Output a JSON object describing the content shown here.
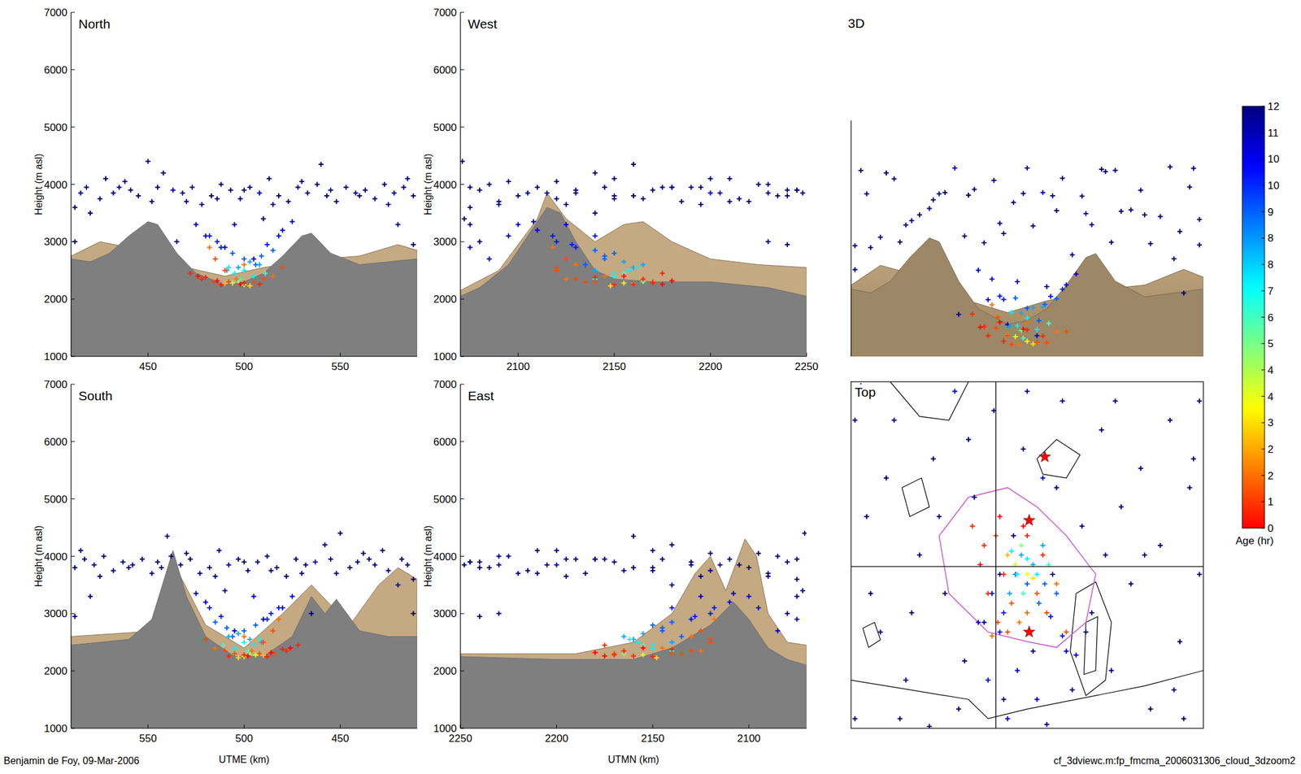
{
  "chart_data": {
    "type": "scatter",
    "marker": "plus",
    "particles": {
      "utme": [
        412,
        418,
        425,
        432,
        438,
        445,
        452,
        458,
        463,
        468,
        473,
        478,
        483,
        488,
        493,
        498,
        503,
        508,
        513,
        518,
        523,
        528,
        533,
        538,
        543,
        548,
        553,
        558,
        563,
        568,
        573,
        578,
        583,
        588,
        415,
        428,
        441,
        455,
        470,
        486,
        500,
        515,
        530,
        545,
        560,
        575,
        585,
        420,
        435,
        465,
        580,
        412,
        588,
        510,
        495,
        520,
        480,
        505,
        490,
        450,
        540,
        475,
        482,
        488,
        494,
        500,
        506,
        512,
        518,
        525,
        497,
        503,
        491,
        509,
        486,
        515,
        495,
        500,
        505,
        492,
        508,
        498,
        511,
        494,
        500,
        497,
        503,
        490,
        472,
        478,
        484,
        488,
        492,
        496,
        500,
        505,
        510,
        515,
        520,
        480,
        486,
        476,
        508,
        490,
        500,
        485,
        482,
        498
      ],
      "utmn": [
        2075,
        2180,
        2120,
        2230,
        2095,
        2160,
        2210,
        2140,
        2245,
        2105,
        2190,
        2125,
        2235,
        2085,
        2170,
        2215,
        2110,
        2200,
        2150,
        2240,
        2090,
        2175,
        2130,
        2225,
        2100,
        2185,
        2145,
        2205,
        2080,
        2165,
        2230,
        2115,
        2195,
        2150,
        2248,
        2200,
        2130,
        2180,
        2220,
        2150,
        2245,
        2195,
        2120,
        2240,
        2160,
        2090,
        2210,
        2140,
        2075,
        2080,
        2075,
        2230,
        2240,
        2072,
        2100,
        2110,
        2095,
        2085,
        2075,
        2071,
        2160,
        2125,
        2140,
        2130,
        2150,
        2145,
        2135,
        2128,
        2118,
        2108,
        2160,
        2155,
        2140,
        2145,
        2120,
        2140,
        2150,
        2158,
        2150,
        2162,
        2165,
        2140,
        2155,
        2155,
        2150,
        2165,
        2148,
        2160,
        2175,
        2165,
        2170,
        2150,
        2135,
        2125,
        2170,
        2140,
        2130,
        2145,
        2120,
        2140,
        2180,
        2155,
        2160,
        2120,
        2130,
        2125,
        2118,
        2175
      ],
      "height": [
        3600,
        3950,
        3750,
        3850,
        4050,
        3800,
        3700,
        4200,
        3900,
        3850,
        3950,
        3650,
        3800,
        4000,
        3900,
        3750,
        3950,
        3850,
        4100,
        3800,
        3700,
        3950,
        3850,
        4000,
        3800,
        3700,
        3950,
        3850,
        3900,
        3750,
        4000,
        3850,
        3950,
        3800,
        3850,
        4100,
        3900,
        3950,
        3700,
        3750,
        3900,
        3650,
        4050,
        3900,
        3800,
        3650,
        4100,
        3500,
        3950,
        3000,
        3300,
        3000,
        2950,
        3400,
        3300,
        3200,
        3100,
        2700,
        2900,
        4400,
        4350,
        3300,
        3100,
        2900,
        2800,
        2700,
        2600,
        2950,
        3100,
        3350,
        2550,
        2650,
        2500,
        2750,
        3000,
        2850,
        2450,
        2500,
        2400,
        2550,
        2600,
        2350,
        2450,
        2280,
        2250,
        2300,
        2230,
        2270,
        2450,
        2350,
        2300,
        2250,
        2300,
        2350,
        2280,
        2300,
        2350,
        2400,
        2550,
        2380,
        2320,
        2400,
        2260,
        2500,
        2600,
        2700,
        2900,
        2260
      ],
      "age": [
        12,
        12,
        12,
        12,
        12,
        12,
        12,
        12,
        11,
        12,
        12,
        12,
        12,
        12,
        12,
        12,
        12,
        11,
        12,
        12,
        12,
        12,
        12,
        12,
        12,
        12,
        12,
        12,
        12,
        12,
        12,
        12,
        12,
        12,
        12,
        12,
        12,
        12,
        12,
        12,
        12,
        12,
        12,
        12,
        12,
        12,
        12,
        12,
        12,
        12,
        12,
        12,
        12,
        12,
        11,
        11,
        11,
        11,
        11,
        12,
        12,
        11,
        10,
        10,
        9,
        9,
        9,
        10,
        10,
        11,
        8,
        8,
        8,
        9,
        10,
        9,
        7,
        7,
        7,
        7,
        8,
        6,
        6,
        4,
        3.5,
        5,
        3,
        2.5,
        0.5,
        0.5,
        1,
        0.5,
        1,
        1.5,
        0.5,
        1,
        1,
        1.5,
        1,
        0.5,
        0,
        0,
        0.5,
        1,
        1.5,
        1,
        1.5,
        0
      ]
    },
    "views": {
      "utme": [
        {
          "title": "North",
          "ylabel": "Height (m asl)",
          "xlim": [
            410,
            590
          ],
          "xticks": [
            450,
            500,
            550
          ],
          "ylim": [
            1000,
            7000
          ],
          "yticks": [
            1000,
            2000,
            3000,
            4000,
            5000,
            6000,
            7000
          ],
          "terrain": {
            "x": [
              410,
              420,
              430,
              440,
              450,
              455,
              465,
              475,
              490,
              500,
              510,
              520,
              530,
              535,
              545,
              560,
              575,
              590
            ],
            "height": [
              2700,
              2650,
              2800,
              3100,
              3350,
              3300,
              2800,
              2450,
              2250,
              2300,
              2450,
              2750,
              3100,
              3150,
              2800,
              2600,
              2650,
              2700
            ]
          },
          "background_terrain": {
            "x": [
              410,
              425,
              440,
              470,
              490,
              510,
              540,
              560,
              580,
              590
            ],
            "height": [
              2750,
              3000,
              2900,
              2550,
              2400,
              2550,
              2700,
              2750,
              2950,
              2850
            ]
          }
        },
        {
          "title": "South",
          "ylabel": "Height (m asl)",
          "xlabel": "UTME (km)",
          "xlim": [
            590,
            410
          ],
          "xticks": [
            550,
            500,
            450
          ],
          "ylim": [
            1000,
            7000
          ],
          "yticks": [
            1000,
            2000,
            3000,
            4000,
            5000,
            6000,
            7000
          ],
          "terrain": {
            "x": [
              410,
              425,
              440,
              452,
              458,
              465,
              475,
              490,
              505,
              520,
              530,
              537,
              548,
              560,
              590
            ],
            "height": [
              2600,
              2600,
              2700,
              3250,
              3000,
              3300,
              2600,
              2250,
              2250,
              2600,
              3300,
              4100,
              2900,
              2550,
              2450
            ]
          },
          "background_terrain": {
            "x": [
              410,
              420,
              430,
              445,
              465,
              480,
              500,
              520,
              537,
              545,
              590
            ],
            "height": [
              3600,
              3800,
              3500,
              2800,
              3500,
              3000,
              2400,
              2800,
              3900,
              2700,
              2600
            ]
          }
        }
      ],
      "utmn": [
        {
          "title": "West",
          "ylabel": "Height (m asl)",
          "xlim": [
            2070,
            2250
          ],
          "xticks": [
            2100,
            2150,
            2200,
            2250
          ],
          "ylim": [
            1000,
            7000
          ],
          "yticks": [
            1000,
            2000,
            3000,
            4000,
            5000,
            6000,
            7000
          ],
          "terrain": {
            "x": [
              2070,
              2080,
              2095,
              2105,
              2115,
              2122,
              2130,
              2140,
              2150,
              2170,
              2200,
              2230,
              2250
            ],
            "height": [
              2050,
              2200,
              2600,
              3100,
              3600,
              3500,
              3000,
              2500,
              2350,
              2300,
              2300,
              2200,
              2050
            ]
          },
          "background_terrain": {
            "x": [
              2070,
              2090,
              2110,
              2115,
              2125,
              2140,
              2155,
              2165,
              2180,
              2200,
              2225,
              2250
            ],
            "height": [
              2150,
              2500,
              3400,
              3850,
              3400,
              3000,
              3300,
              3350,
              3000,
              2700,
              2600,
              2550
            ]
          }
        },
        {
          "title": "East",
          "ylabel": "Height (m asl)",
          "xlabel": "UTMN (km)",
          "xlim": [
            2250,
            2070
          ],
          "xticks": [
            2250,
            2200,
            2150,
            2100
          ],
          "ylim": [
            1000,
            7000
          ],
          "yticks": [
            1000,
            2000,
            3000,
            4000,
            5000,
            6000,
            7000
          ],
          "terrain": {
            "x": [
              2070,
              2080,
              2090,
              2100,
              2108,
              2120,
              2140,
              2160,
              2200,
              2250
            ],
            "height": [
              2100,
              2200,
              2400,
              2900,
              3200,
              2800,
              2400,
              2200,
              2200,
              2250
            ]
          },
          "background_terrain": {
            "x": [
              2070,
              2080,
              2090,
              2096,
              2102,
              2112,
              2120,
              2128,
              2140,
              2160,
              2190,
              2250
            ],
            "height": [
              2450,
              2500,
              3000,
              4000,
              4300,
              3400,
              4000,
              3700,
              3000,
              2500,
              2300,
              2300
            ]
          }
        }
      ]
    },
    "perspective": {
      "title": "3D"
    },
    "top": {
      "title": "Top",
      "tick_labels": false,
      "xlim": [
        410,
        590
      ],
      "ylim": [
        2070,
        2250
      ],
      "crosshair": {
        "utme": 484,
        "utmn": 2154
      },
      "stars": {
        "color": "#ff0000",
        "utme": [
          509,
          501,
          501
        ],
        "utmn": [
          2211,
          2178,
          2120
        ]
      },
      "contours": {
        "color": "#000000",
        "lines": [
          {
            "utme": [
              505,
              515,
              527,
              520,
              508,
              505
            ],
            "utmn": [
              2210,
              2220,
              2212,
              2200,
              2202,
              2210
            ]
          },
          {
            "utme": [
              525,
              535,
              543,
              540,
              530,
              522,
              525
            ],
            "utmn": [
              2140,
              2146,
              2125,
              2095,
              2087,
              2110,
              2140
            ]
          },
          {
            "utme": [
              530,
              536,
              535,
              529,
              530
            ],
            "utmn": [
              2125,
              2128,
              2100,
              2098,
              2125
            ]
          },
          {
            "utme": [
              416,
              422,
              425,
              419,
              416
            ],
            "utmn": [
              2122,
              2125,
              2116,
              2112,
              2122
            ]
          },
          {
            "utme": [
              430,
              445,
              460,
              470
            ],
            "utmn": [
              2250,
              2232,
              2230,
              2250
            ]
          },
          {
            "utme": [
              410,
              440,
              470,
              480,
              500,
              560,
              590
            ],
            "utmn": [
              2095,
              2090,
              2085,
              2075,
              2080,
              2092,
              2100
            ]
          },
          {
            "utme": [
              436,
              446,
              450,
              440,
              436
            ],
            "utmn": [
              2195,
              2200,
              2185,
              2180,
              2195
            ]
          }
        ]
      },
      "boundary": {
        "color": "#cc55cc",
        "utme": [
          470,
          490,
          505,
          520,
          535,
          530,
          515,
          500,
          480,
          460,
          455,
          470
        ],
        "utmn": [
          2190,
          2195,
          2185,
          2170,
          2150,
          2125,
          2112,
          2115,
          2120,
          2140,
          2170,
          2190
        ]
      }
    },
    "colorbar": {
      "label": "Age (hr)",
      "range": [
        0,
        12
      ],
      "ticks": [
        0,
        {
          "value": 0.75,
          "label": "1"
        },
        {
          "value": 1.5,
          "label": "2"
        },
        {
          "value": 2.25,
          "label": "2"
        },
        3,
        {
          "value": 3.75,
          "label": "4"
        },
        {
          "value": 4.5,
          "label": "4"
        },
        {
          "value": 5.25,
          "label": "5"
        },
        6,
        {
          "value": 6.75,
          "label": "7"
        },
        {
          "value": 7.5,
          "label": "8"
        },
        {
          "value": 8.25,
          "label": "8"
        },
        9,
        {
          "value": 9.75,
          "label": "10"
        },
        {
          "value": 10.5,
          "label": "10"
        },
        {
          "value": 11.25,
          "label": "11"
        },
        12
      ]
    },
    "footer": {
      "left": "Benjamin de Foy, 09-Mar-2006",
      "right": "cf_3dviewc.m:fp_fmcma_2006031306_cloud_3dzoom2"
    }
  }
}
